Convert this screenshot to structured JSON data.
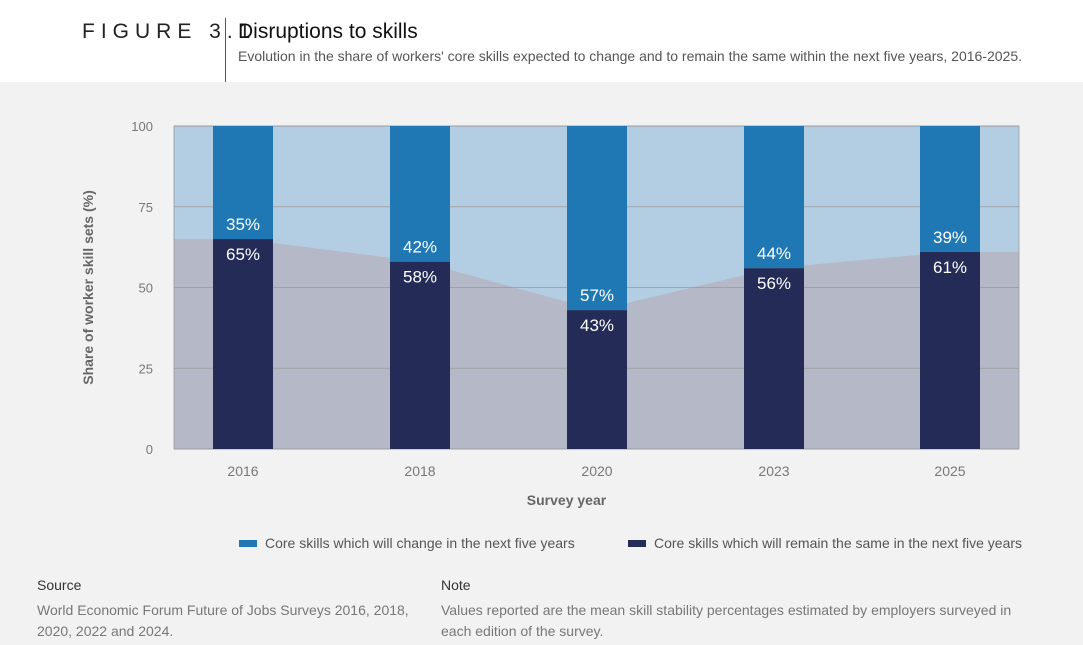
{
  "header": {
    "figure_label": "FIGURE 3.1",
    "title": "Disruptions to skills",
    "subtitle": "Evolution in the share of workers' core skills expected to change and to remain the same within the next five years, 2016-2025."
  },
  "legend": {
    "change_label": "Core skills which will change in the next five years",
    "same_label": "Core skills which will remain the same in the next five years"
  },
  "footer": {
    "source_heading": "Source",
    "source_text": "World Economic Forum Future of Jobs Surveys 2016, 2018, 2020, 2022 and 2024.",
    "note_heading": "Note",
    "note_text": "Values reported are the mean skill stability percentages estimated by employers surveyed in each edition of the survey."
  },
  "chart_data": {
    "type": "bar",
    "stacked": true,
    "categories": [
      "2016",
      "2018",
      "2020",
      "2023",
      "2025"
    ],
    "series": [
      {
        "name": "Core skills which will remain the same in the next five years",
        "values": [
          65,
          58,
          43,
          56,
          61
        ],
        "labels": [
          "65%",
          "58%",
          "43%",
          "56%",
          "61%"
        ]
      },
      {
        "name": "Core skills which will change in the next five years",
        "values": [
          35,
          42,
          57,
          44,
          39
        ],
        "labels": [
          "35%",
          "42%",
          "57%",
          "44%",
          "39%"
        ]
      }
    ],
    "xlabel": "Survey year",
    "ylabel": "Share of worker skill sets (%)",
    "ylim": [
      0,
      100
    ],
    "yticks": [
      0,
      25,
      50,
      75,
      100
    ],
    "grid": true,
    "colors": {
      "change": "#1f78b4",
      "same": "#232b56",
      "change_area": "#b3cde3",
      "same_area": "#b5b8c6"
    }
  }
}
